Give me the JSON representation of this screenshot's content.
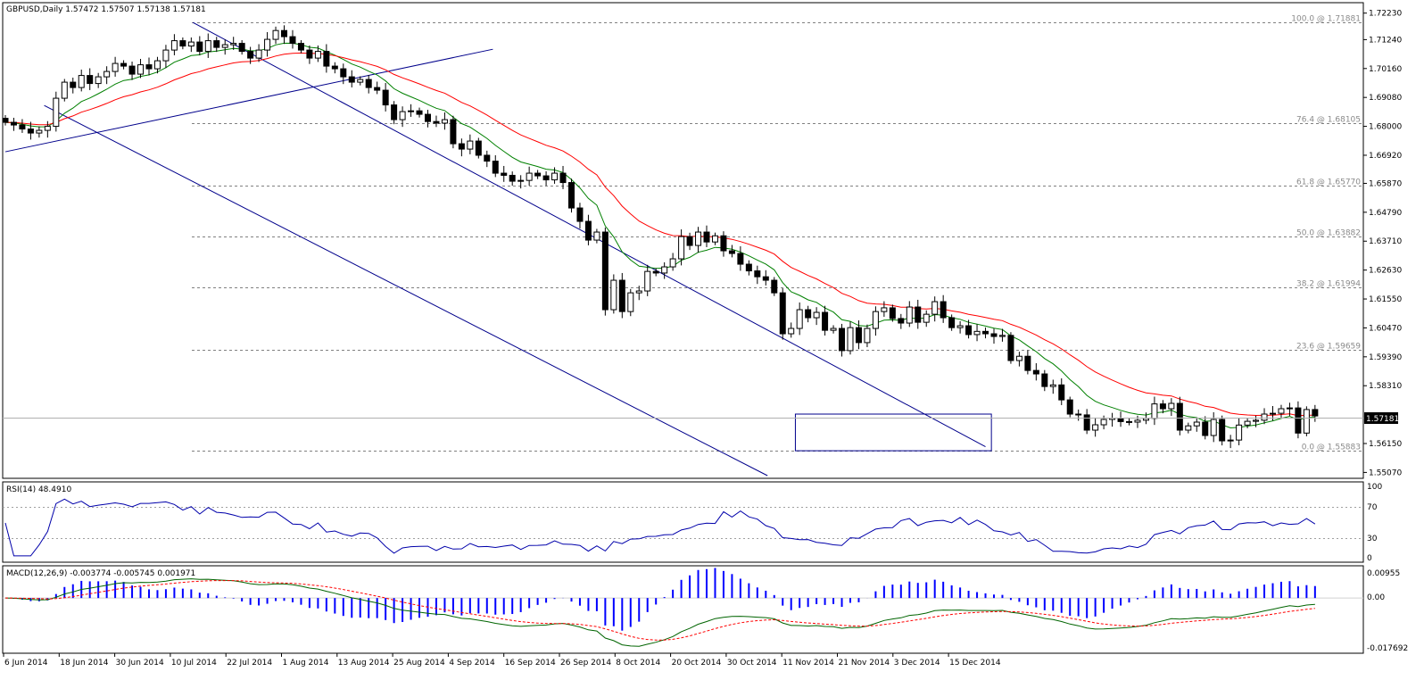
{
  "header": {
    "main": "GBPUSD,Daily  1.57472 1.57507 1.57138 1.57181",
    "rsi": "RSI(14) 48.4910",
    "macd": "MACD(12,26,9) -0.003774 -0.005745 0.001971"
  },
  "current_price_label": "1.57181",
  "chart_data": {
    "type": "candlestick",
    "symbol": "GBPUSD",
    "timeframe": "Daily",
    "ohlc_last": {
      "open": 1.57472,
      "high": 1.57507,
      "low": 1.57138,
      "close": 1.57181
    },
    "price_axis_ticks": [
      "1.72230",
      "1.71240",
      "1.70160",
      "1.69080",
      "1.68000",
      "1.66920",
      "1.65870",
      "1.64790",
      "1.63710",
      "1.62630",
      "1.61550",
      "1.60470",
      "1.59390",
      "1.58310",
      "1.56150",
      "1.55070"
    ],
    "price_range": [
      1.5485,
      1.7262
    ],
    "date_axis_ticks": [
      "6 Jun 2014",
      "18 Jun 2014",
      "30 Jun 2014",
      "10 Jul 2014",
      "22 Jul 2014",
      "1 Aug 2014",
      "13 Aug 2014",
      "25 Aug 2014",
      "4 Sep 2014",
      "16 Sep 2014",
      "26 Sep 2014",
      "8 Oct 2014",
      "20 Oct 2014",
      "30 Oct 2014",
      "11 Nov 2014",
      "21 Nov 2014",
      "3 Dec 2014",
      "15 Dec 2014"
    ],
    "fibonacci": [
      {
        "label": "100.0 @ 1.71881",
        "price": 1.71881
      },
      {
        "label": "76.4 @ 1.68105",
        "price": 1.68105
      },
      {
        "label": "61.8 @ 1.65770",
        "price": 1.6577
      },
      {
        "label": "50.0 @ 1.63882",
        "price": 1.63882
      },
      {
        "label": "38.2 @ 1.61994",
        "price": 1.61994
      },
      {
        "label": "23.6 @ 1.59659",
        "price": 1.59659
      },
      {
        "label": "0.0 @ 1.55883",
        "price": 1.55883
      }
    ],
    "closes": [
      1.6815,
      1.6805,
      1.679,
      1.6775,
      1.6785,
      1.68,
      1.6905,
      1.6965,
      1.6945,
      1.699,
      1.696,
      1.6985,
      1.7005,
      1.7035,
      1.7025,
      1.6995,
      1.703,
      1.7015,
      1.7045,
      1.7085,
      1.712,
      1.71,
      1.7115,
      1.708,
      1.712,
      1.7095,
      1.7105,
      1.711,
      1.708,
      1.7055,
      1.7085,
      1.7125,
      1.7158,
      1.7135,
      1.711,
      1.7085,
      1.7055,
      1.708,
      1.7025,
      1.7015,
      1.6985,
      1.6965,
      1.6975,
      1.6945,
      1.6935,
      1.688,
      1.6825,
      1.6855,
      1.6858,
      1.6845,
      1.6818,
      1.6812,
      1.6825,
      1.6735,
      1.6715,
      1.6745,
      1.6692,
      1.667,
      1.6625,
      1.6617,
      1.6595,
      1.6598,
      1.6625,
      1.6615,
      1.66,
      1.6625,
      1.659,
      1.6495,
      1.6445,
      1.6375,
      1.6405,
      1.6115,
      1.6225,
      1.6108,
      1.6178,
      1.6185,
      1.6258,
      1.6252,
      1.6275,
      1.6305,
      1.6388,
      1.6355,
      1.6405,
      1.6368,
      1.6391,
      1.6335,
      1.6325,
      1.6285,
      1.626,
      1.6238,
      1.6225,
      1.6178,
      1.6025,
      1.6045,
      1.6115,
      1.6085,
      1.6105,
      1.6038,
      1.6045,
      1.5962,
      1.6048,
      1.5992,
      1.6045,
      1.6108,
      1.6122,
      1.6082,
      1.6065,
      1.6125,
      1.6068,
      1.6098,
      1.6145,
      1.6085,
      1.6048,
      1.6055,
      1.6022,
      1.6034,
      1.6025,
      1.6015,
      1.6019,
      1.5925,
      1.5941,
      1.5888,
      1.5875,
      1.5828,
      1.5834,
      1.5778,
      1.5725,
      1.5722,
      1.5665,
      1.5685,
      1.5705,
      1.571,
      1.5697,
      1.5695,
      1.5702,
      1.5709,
      1.5763,
      1.5745,
      1.5765,
      1.5665,
      1.5681,
      1.5695,
      1.5645,
      1.5705,
      1.5625,
      1.5628,
      1.5684,
      1.5698,
      1.5702,
      1.5725,
      1.5728,
      1.5745,
      1.5748,
      1.5654,
      1.5742,
      1.5718
    ],
    "rsi": {
      "period": 14,
      "value": 48.491,
      "levels": [
        70,
        30
      ],
      "scale": [
        0,
        100
      ]
    },
    "macd": {
      "fast": 12,
      "slow": 26,
      "signal": 9,
      "main": -0.003774,
      "signal_value": -0.005745,
      "histogram": 0.001971,
      "axis_ticks": [
        "0.00955",
        "0.00",
        "-0.017692"
      ]
    }
  },
  "colors": {
    "candle_bull": "#ffffff",
    "candle_bear": "#000000",
    "ema_fast": "#008000",
    "ema_slow": "#ff0000",
    "trend_lines": "#00008b",
    "rsi_line": "#0000aa",
    "macd_main": "#006400",
    "macd_signal": "#ff0000",
    "macd_hist": "#0000ff",
    "fib_line": "#808080"
  }
}
